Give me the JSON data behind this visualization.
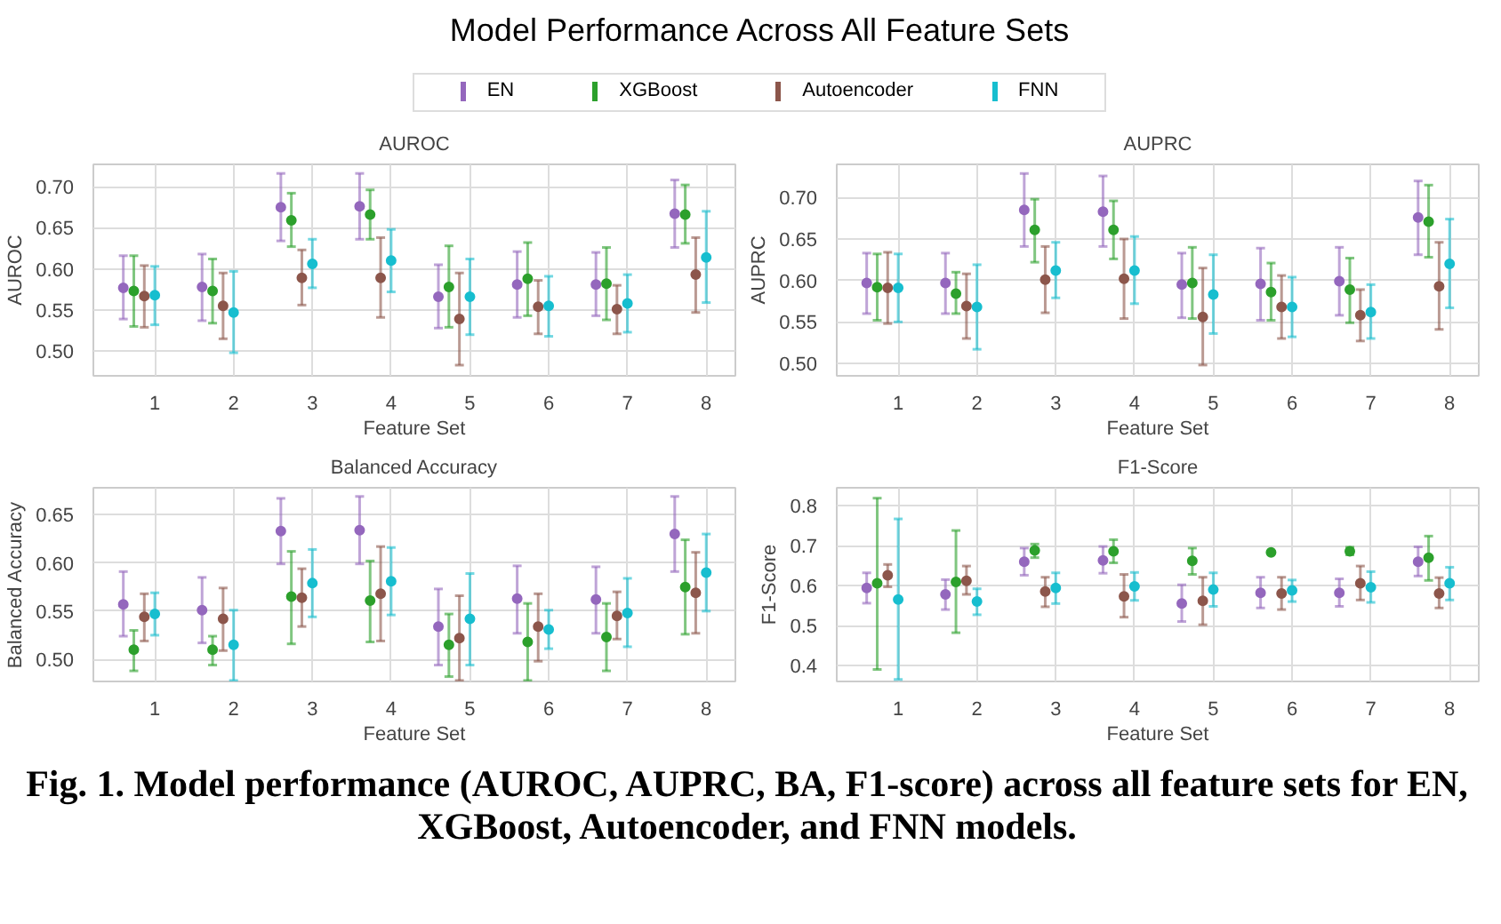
{
  "chart_data": [
    {
      "type": "scatter",
      "title": "AUROC",
      "xlabel": "Feature Set",
      "ylabel": "AUROC",
      "annotations": [
        "Model Performance Across All Feature Sets"
      ],
      "legend": "top",
      "grid": true,
      "marker": "circle",
      "categories": [
        "1",
        "2",
        "3",
        "4",
        "5",
        "6",
        "7",
        "8"
      ],
      "ylim": [
        0.47,
        0.727
      ],
      "yticks": [
        {
          "value": 0.5,
          "label": "0.50"
        },
        {
          "value": 0.55,
          "label": "0.55"
        },
        {
          "value": 0.6,
          "label": "0.60"
        },
        {
          "value": 0.65,
          "label": "0.65"
        },
        {
          "value": 0.7,
          "label": "0.70"
        }
      ],
      "series": [
        {
          "name": "EN",
          "color": "#9467bd",
          "values": [
            0.577,
            0.578,
            0.675,
            0.676,
            0.566,
            0.581,
            0.581,
            0.667
          ],
          "errors": [
            [
              0.539,
              0.616
            ],
            [
              0.537,
              0.618
            ],
            [
              0.634,
              0.716
            ],
            [
              0.636,
              0.716
            ],
            [
              0.528,
              0.605
            ],
            [
              0.541,
              0.621
            ],
            [
              0.543,
              0.62
            ],
            [
              0.626,
              0.708
            ]
          ]
        },
        {
          "name": "XGBoost",
          "color": "#2ca02c",
          "values": [
            0.573,
            0.573,
            0.659,
            0.666,
            0.578,
            0.588,
            0.582,
            0.666
          ],
          "errors": [
            [
              0.53,
              0.616
            ],
            [
              0.534,
              0.612
            ],
            [
              0.627,
              0.692
            ],
            [
              0.636,
              0.696
            ],
            [
              0.529,
              0.628
            ],
            [
              0.543,
              0.632
            ],
            [
              0.538,
              0.626
            ],
            [
              0.631,
              0.702
            ]
          ]
        },
        {
          "name": "Autoencoder",
          "color": "#8c564b",
          "values": [
            0.567,
            0.555,
            0.589,
            0.589,
            0.539,
            0.554,
            0.551,
            0.593
          ],
          "errors": [
            [
              0.529,
              0.604
            ],
            [
              0.515,
              0.595
            ],
            [
              0.556,
              0.623
            ],
            [
              0.541,
              0.638
            ],
            [
              0.483,
              0.595
            ],
            [
              0.521,
              0.586
            ],
            [
              0.521,
              0.58
            ],
            [
              0.547,
              0.638
            ]
          ]
        },
        {
          "name": "FNN",
          "color": "#17becf",
          "values": [
            0.568,
            0.547,
            0.606,
            0.61,
            0.566,
            0.555,
            0.558,
            0.614
          ],
          "errors": [
            [
              0.532,
              0.603
            ],
            [
              0.498,
              0.597
            ],
            [
              0.577,
              0.636
            ],
            [
              0.572,
              0.648
            ],
            [
              0.52,
              0.612
            ],
            [
              0.518,
              0.591
            ],
            [
              0.523,
              0.593
            ],
            [
              0.559,
              0.67
            ]
          ]
        }
      ]
    },
    {
      "type": "scatter",
      "title": "AUPRC",
      "xlabel": "Feature Set",
      "ylabel": "AUPRC",
      "grid": true,
      "marker": "circle",
      "categories": [
        "1",
        "2",
        "3",
        "4",
        "5",
        "6",
        "7",
        "8"
      ],
      "ylim": [
        0.485,
        0.74
      ],
      "yticks": [
        {
          "value": 0.5,
          "label": "0.50"
        },
        {
          "value": 0.55,
          "label": "0.55"
        },
        {
          "value": 0.6,
          "label": "0.60"
        },
        {
          "value": 0.65,
          "label": "0.65"
        },
        {
          "value": 0.7,
          "label": "0.70"
        }
      ],
      "series": [
        {
          "color": "#9467bd",
          "values": [
            0.597,
            0.597,
            0.685,
            0.683,
            0.595,
            0.596,
            0.599,
            0.676
          ],
          "errors": [
            [
              0.56,
              0.633
            ],
            [
              0.56,
              0.633
            ],
            [
              0.641,
              0.729
            ],
            [
              0.641,
              0.726
            ],
            [
              0.555,
              0.633
            ],
            [
              0.552,
              0.639
            ],
            [
              0.558,
              0.64
            ],
            [
              0.631,
              0.72
            ]
          ]
        },
        {
          "color": "#2ca02c",
          "values": [
            0.592,
            0.584,
            0.661,
            0.661,
            0.597,
            0.586,
            0.589,
            0.671
          ],
          "errors": [
            [
              0.552,
              0.632
            ],
            [
              0.56,
              0.61
            ],
            [
              0.622,
              0.698
            ],
            [
              0.626,
              0.696
            ],
            [
              0.554,
              0.64
            ],
            [
              0.552,
              0.621
            ],
            [
              0.549,
              0.627
            ],
            [
              0.628,
              0.715
            ]
          ]
        },
        {
          "color": "#8c564b",
          "values": [
            0.591,
            0.569,
            0.601,
            0.602,
            0.556,
            0.568,
            0.558,
            0.593
          ],
          "errors": [
            [
              0.548,
              0.634
            ],
            [
              0.53,
              0.608
            ],
            [
              0.561,
              0.641
            ],
            [
              0.554,
              0.65
            ],
            [
              0.498,
              0.615
            ],
            [
              0.53,
              0.606
            ],
            [
              0.527,
              0.589
            ],
            [
              0.541,
              0.646
            ]
          ]
        },
        {
          "color": "#17becf",
          "values": [
            0.591,
            0.568,
            0.612,
            0.612,
            0.583,
            0.568,
            0.562,
            0.62
          ],
          "errors": [
            [
              0.55,
              0.632
            ],
            [
              0.517,
              0.619
            ],
            [
              0.579,
              0.646
            ],
            [
              0.572,
              0.653
            ],
            [
              0.536,
              0.631
            ],
            [
              0.532,
              0.604
            ],
            [
              0.53,
              0.595
            ],
            [
              0.567,
              0.674
            ]
          ]
        }
      ]
    },
    {
      "type": "scatter",
      "title": "Balanced Accuracy",
      "xlabel": "Feature Set",
      "ylabel": "Balanced Accuracy",
      "grid": true,
      "marker": "circle",
      "categories": [
        "1",
        "2",
        "3",
        "4",
        "5",
        "6",
        "7",
        "8"
      ],
      "ylim": [
        0.477,
        0.678
      ],
      "yticks": [
        {
          "value": 0.5,
          "label": "0.50"
        },
        {
          "value": 0.55,
          "label": "0.55"
        },
        {
          "value": 0.6,
          "label": "0.60"
        },
        {
          "value": 0.65,
          "label": "0.65"
        }
      ],
      "series": [
        {
          "color": "#9467bd",
          "values": [
            0.557,
            0.551,
            0.633,
            0.634,
            0.534,
            0.563,
            0.562,
            0.63
          ],
          "errors": [
            [
              0.524,
              0.591
            ],
            [
              0.517,
              0.585
            ],
            [
              0.599,
              0.667
            ],
            [
              0.599,
              0.669
            ],
            [
              0.494,
              0.573
            ],
            [
              0.527,
              0.597
            ],
            [
              0.527,
              0.596
            ],
            [
              0.591,
              0.669
            ]
          ]
        },
        {
          "color": "#2ca02c",
          "values": [
            0.51,
            0.51,
            0.565,
            0.561,
            0.515,
            0.518,
            0.523,
            0.575
          ],
          "errors": [
            [
              0.488,
              0.53
            ],
            [
              0.494,
              0.524
            ],
            [
              0.516,
              0.612
            ],
            [
              0.518,
              0.602
            ],
            [
              0.482,
              0.547
            ],
            [
              0.478,
              0.558
            ],
            [
              0.488,
              0.558
            ],
            [
              0.526,
              0.624
            ]
          ]
        },
        {
          "color": "#8c564b",
          "values": [
            0.544,
            0.542,
            0.564,
            0.568,
            0.522,
            0.534,
            0.545,
            0.569
          ],
          "errors": [
            [
              0.519,
              0.568
            ],
            [
              0.509,
              0.574
            ],
            [
              0.534,
              0.594
            ],
            [
              0.519,
              0.617
            ],
            [
              0.478,
              0.566
            ],
            [
              0.498,
              0.568
            ],
            [
              0.521,
              0.57
            ],
            [
              0.527,
              0.611
            ]
          ]
        },
        {
          "color": "#17becf",
          "values": [
            0.547,
            0.515,
            0.579,
            0.581,
            0.542,
            0.531,
            0.548,
            0.59
          ],
          "errors": [
            [
              0.525,
              0.569
            ],
            [
              0.478,
              0.551
            ],
            [
              0.544,
              0.614
            ],
            [
              0.546,
              0.616
            ],
            [
              0.494,
              0.589
            ],
            [
              0.511,
              0.551
            ],
            [
              0.513,
              0.584
            ],
            [
              0.55,
              0.63
            ]
          ]
        }
      ]
    },
    {
      "type": "scatter",
      "title": "F1-Score",
      "xlabel": "Feature Set",
      "ylabel": "F1-Score",
      "grid": true,
      "marker": "circle",
      "annotations": [
        "Fig. 1. Model performance (AUROC, AUPRC, BA, F1-score) across all feature sets for EN, XGBoost, Autoencoder, and FNN models."
      ],
      "categories": [
        "1",
        "2",
        "3",
        "4",
        "5",
        "6",
        "7",
        "8"
      ],
      "ylim": [
        0.36,
        0.845
      ],
      "yticks": [
        {
          "value": 0.4,
          "label": "0.4"
        },
        {
          "value": 0.5,
          "label": "0.5"
        },
        {
          "value": 0.6,
          "label": "0.6"
        },
        {
          "value": 0.7,
          "label": "0.7"
        },
        {
          "value": 0.8,
          "label": "0.8"
        }
      ],
      "series": [
        {
          "color": "#9467bd",
          "values": [
            0.594,
            0.578,
            0.66,
            0.663,
            0.555,
            0.582,
            0.582,
            0.66
          ],
          "errors": [
            [
              0.556,
              0.632
            ],
            [
              0.54,
              0.615
            ],
            [
              0.626,
              0.694
            ],
            [
              0.631,
              0.698
            ],
            [
              0.51,
              0.602
            ],
            [
              0.544,
              0.621
            ],
            [
              0.548,
              0.617
            ],
            [
              0.624,
              0.697
            ]
          ]
        },
        {
          "color": "#2ca02c",
          "values": [
            0.606,
            0.609,
            0.688,
            0.686,
            0.662,
            0.683,
            0.686,
            0.67
          ],
          "errors": [
            [
              0.39,
              0.819
            ],
            [
              0.482,
              0.738
            ],
            [
              0.67,
              0.704
            ],
            [
              0.657,
              0.715
            ],
            [
              0.628,
              0.694
            ],
            null,
            [
              0.677,
              0.696
            ],
            [
              0.613,
              0.724
            ]
          ]
        },
        {
          "color": "#8c564b",
          "values": [
            0.626,
            0.612,
            0.585,
            0.573,
            0.562,
            0.58,
            0.606,
            0.58
          ],
          "errors": [
            [
              0.597,
              0.653
            ],
            [
              0.578,
              0.649
            ],
            [
              0.547,
              0.621
            ],
            [
              0.521,
              0.628
            ],
            [
              0.502,
              0.621
            ],
            [
              0.54,
              0.621
            ],
            [
              0.564,
              0.649
            ],
            [
              0.544,
              0.62
            ]
          ]
        },
        {
          "color": "#17becf",
          "values": [
            0.565,
            0.56,
            0.594,
            0.598,
            0.59,
            0.588,
            0.596,
            0.606
          ],
          "errors": [
            [
              0.365,
              0.767
            ],
            [
              0.527,
              0.592
            ],
            [
              0.555,
              0.632
            ],
            [
              0.563,
              0.633
            ],
            [
              0.548,
              0.632
            ],
            [
              0.56,
              0.614
            ],
            [
              0.558,
              0.635
            ],
            [
              0.564,
              0.646
            ]
          ]
        }
      ]
    }
  ]
}
